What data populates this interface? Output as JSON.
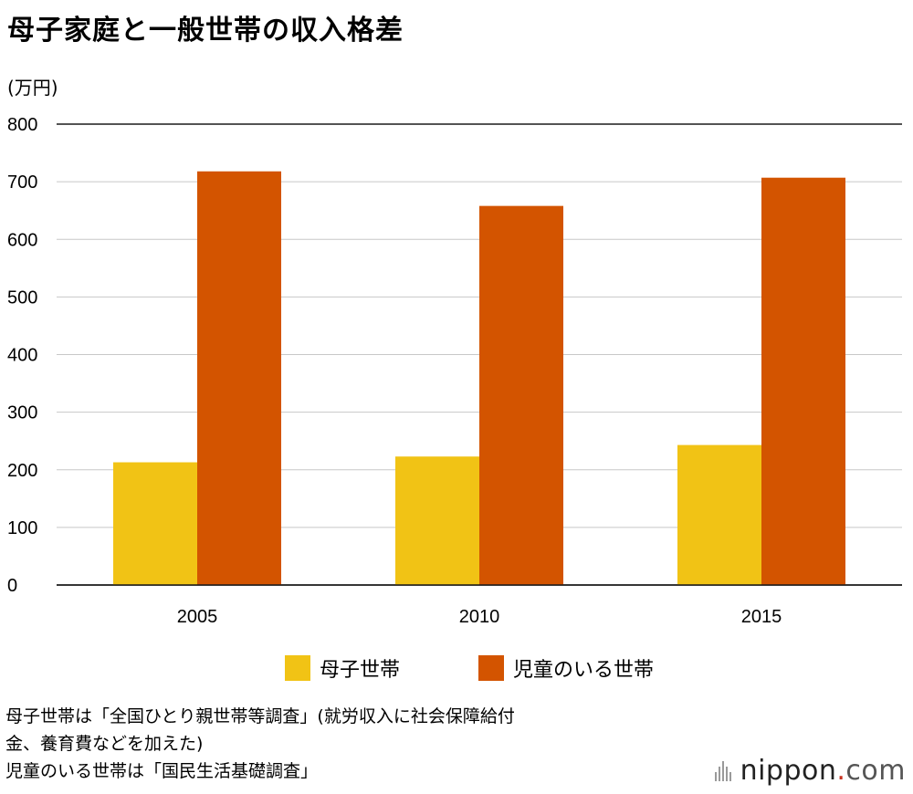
{
  "title": "母子家庭と一般世帯の収入格差",
  "unit": "(万円)",
  "legend": [
    {
      "label": "母子世帯",
      "color": "#F1C315"
    },
    {
      "label": "児童のいる世帯",
      "color": "#D35400"
    }
  ],
  "source": [
    "母子世帯は「全国ひとり親世帯等調査」(就労収入に社会保障給付",
    "金、養育費などを加えた)",
    "児童のいる世帯は「国民生活基礎調査」"
  ],
  "logo": {
    "name": "nippon",
    "dot": ".",
    "tld": "com"
  },
  "chart_data": {
    "type": "bar",
    "categories": [
      "2005",
      "2010",
      "2015"
    ],
    "series": [
      {
        "name": "母子世帯",
        "color": "#F1C315",
        "values": [
          213,
          223,
          243
        ]
      },
      {
        "name": "児童のいる世帯",
        "color": "#D35400",
        "values": [
          718,
          658,
          707
        ]
      }
    ],
    "ylabel": "(万円)",
    "ylim": [
      0,
      800
    ],
    "yticks": [
      0,
      100,
      200,
      300,
      400,
      500,
      600,
      700,
      800
    ],
    "grid": true,
    "legend_position": "bottom"
  }
}
